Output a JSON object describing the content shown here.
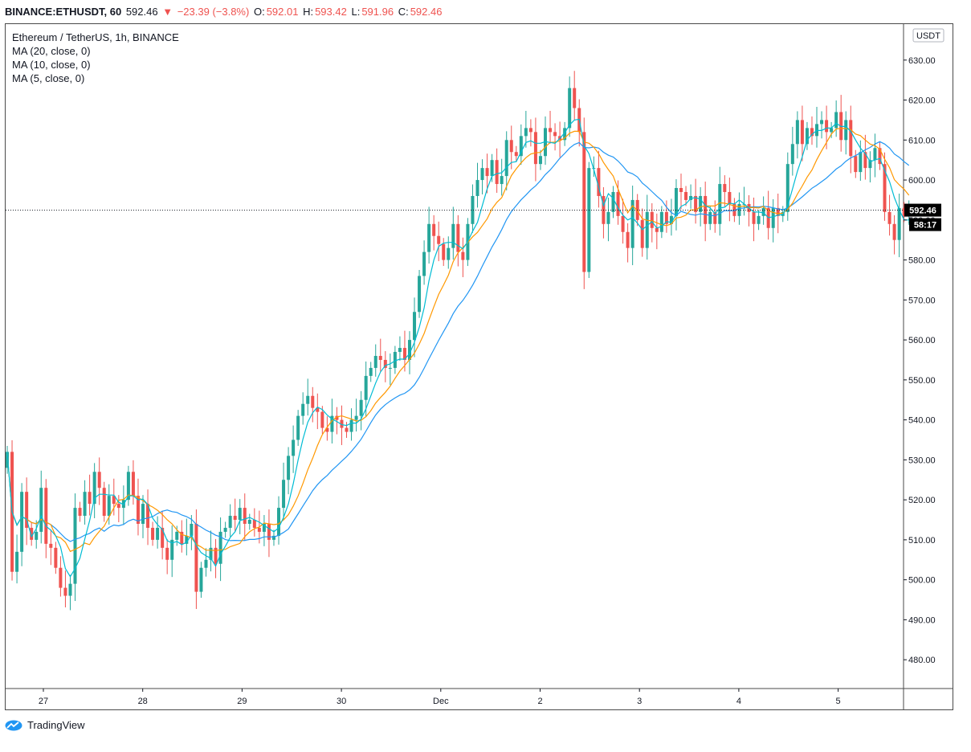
{
  "header": {
    "symbol": "BINANCE:ETHUSDT, 60",
    "last": "592.46",
    "change_arrow": "▼",
    "change": "−23.39 (−3.8%)",
    "open_label": "O:",
    "open": "592.01",
    "high_label": "H:",
    "high": "593.42",
    "low_label": "L:",
    "low": "591.96",
    "close_label": "C:",
    "close": "592.46"
  },
  "legend": {
    "title": "Ethereum / TetherUS, 1h, BINANCE",
    "ma20": "MA (20, close, 0)",
    "ma10": "MA (10, close, 0)",
    "ma5": "MA (5, close, 0)"
  },
  "price_axis": {
    "currency": "USDT",
    "last_price": "592.46",
    "countdown": "58:17"
  },
  "branding": {
    "name": "TradingView",
    "icon": "tradingview-logo-icon"
  },
  "colors": {
    "up": "#26a69a",
    "down": "#ef5350",
    "ma20": "#2196f3",
    "ma10": "#ff9800",
    "ma5": "#00bcd4",
    "axis": "#131722"
  },
  "chart_data": {
    "type": "candlestick",
    "title": "Ethereum / TetherUS, 1h, BINANCE",
    "ylim": [
      473,
      639
    ],
    "y_ticks": [
      "480.00",
      "490.00",
      "500.00",
      "510.00",
      "520.00",
      "530.00",
      "540.00",
      "550.00",
      "560.00",
      "570.00",
      "580.00",
      "590.00",
      "600.00",
      "610.00",
      "620.00",
      "630.00"
    ],
    "x_ticks": [
      "27",
      "28",
      "29",
      "30",
      "Dec",
      "2",
      "3",
      "4",
      "5"
    ],
    "grid": false,
    "legend_position": "top-left",
    "indicators": [
      "MA (20, close, 0)",
      "MA (10, close, 0)",
      "MA (5, close, 0)"
    ],
    "closes": [
      532,
      502,
      507,
      522,
      513,
      510,
      512,
      523,
      509,
      508,
      503,
      498,
      496,
      499,
      518,
      516,
      522,
      519,
      527,
      523,
      516,
      521,
      519,
      518,
      520,
      527,
      521,
      514,
      519,
      513,
      510,
      513,
      508,
      505,
      510,
      512,
      509,
      511,
      514,
      497,
      503,
      505,
      508,
      504,
      512,
      513,
      516,
      515,
      518,
      514,
      515,
      513,
      512,
      514,
      510,
      511,
      518,
      525,
      531,
      535,
      541,
      544,
      546,
      543,
      542,
      538,
      537,
      541,
      540,
      538,
      537,
      540,
      541,
      545,
      551,
      553,
      556,
      555,
      553,
      553,
      557,
      558,
      555,
      560,
      567,
      576,
      582,
      589,
      586,
      584,
      580,
      583,
      589,
      582,
      580,
      589,
      596,
      600,
      603,
      601,
      605,
      599,
      601,
      610,
      607,
      606,
      611,
      613,
      612,
      604,
      606,
      613,
      612,
      611,
      610,
      613,
      623,
      618,
      612,
      577,
      603,
      603,
      596,
      589,
      592,
      597,
      591,
      587,
      583,
      595,
      590,
      583,
      592,
      588,
      587,
      592,
      589,
      591,
      598,
      597,
      595,
      596,
      592,
      596,
      589,
      592,
      589,
      599,
      597,
      594,
      591,
      594,
      594,
      592,
      589,
      591,
      593,
      588,
      593,
      591,
      592,
      604,
      609,
      615,
      609,
      613,
      611,
      614,
      615,
      612,
      613,
      617,
      610,
      615,
      606,
      602,
      607,
      603,
      605,
      608,
      604,
      592,
      589,
      585,
      593,
      591,
      592
    ],
    "ma_periods": [
      20,
      10,
      5
    ]
  }
}
